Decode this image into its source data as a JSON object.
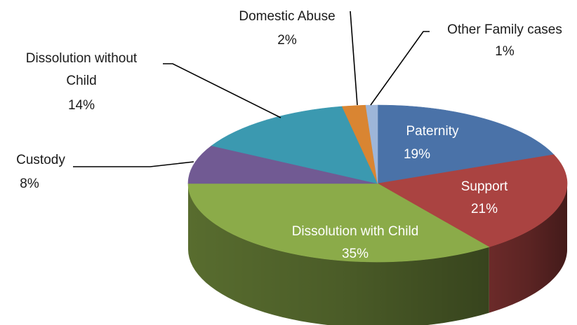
{
  "chart_data": {
    "type": "pie",
    "style": "3d",
    "slices": [
      {
        "label": "Paternity",
        "value": 19,
        "value_label": "19%",
        "color": "#4a72a8",
        "label_position": "inside"
      },
      {
        "label": "Support",
        "value": 21,
        "value_label": "21%",
        "color": "#aa4341",
        "label_position": "inside"
      },
      {
        "label": "Dissolution with Child",
        "value": 35,
        "value_label": "35%",
        "color": "#8bab49",
        "label_position": "inside"
      },
      {
        "label": "Custody",
        "value": 8,
        "value_label": "8%",
        "color": "#715a93",
        "label_position": "outside"
      },
      {
        "label": "Dissolution without Child",
        "value": 14,
        "value_label": "14%",
        "color": "#3b99b0",
        "label_position": "outside"
      },
      {
        "label": "Domestic Abuse",
        "value": 2,
        "value_label": "2%",
        "color": "#d98532",
        "label_position": "outside"
      },
      {
        "label": "Other Family cases",
        "value": 1,
        "value_label": "1%",
        "color": "#9eb6d9",
        "label_position": "outside"
      }
    ]
  }
}
